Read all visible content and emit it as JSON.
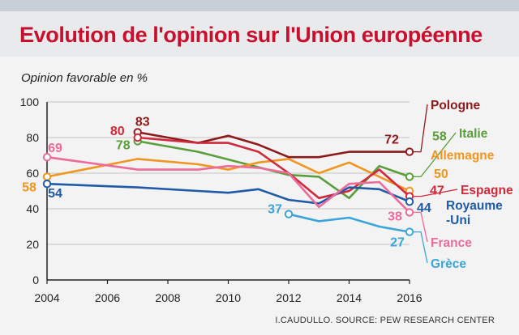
{
  "chart_data": {
    "type": "line",
    "title": "Evolution de l'opinion sur l'Union européenne",
    "ylabel": "Opinion favorable en %",
    "source": "I.CAUDULLO. SOURCE: PEW RESEARCH CENTER",
    "xlim": [
      2004,
      2016
    ],
    "ylim": [
      0,
      100
    ],
    "x_ticks": [
      "2004",
      "2006",
      "2008",
      "2010",
      "2012",
      "2014",
      "2016"
    ],
    "y_ticks": [
      "0",
      "20",
      "40",
      "60",
      "80",
      "100"
    ],
    "grid": true,
    "series": [
      {
        "name": "Pologne",
        "color": "#8e1b1b",
        "x": [
          2007,
          2008,
          2009,
          2010,
          2011,
          2012,
          2013,
          2014,
          2015,
          2016
        ],
        "y": [
          83,
          80,
          77,
          81,
          76,
          69,
          69,
          72,
          72,
          72
        ],
        "start_label": "83",
        "end_label": "72",
        "legend_label": "Pologne"
      },
      {
        "name": "Italie",
        "color": "#5a9e3a",
        "x": [
          2007,
          2009,
          2012,
          2013,
          2014,
          2015,
          2016
        ],
        "y": [
          78,
          72,
          59,
          58,
          46,
          64,
          58
        ],
        "start_label": "78",
        "end_label": "58",
        "legend_label": "Italie"
      },
      {
        "name": "Allemagne",
        "color": "#f0961e",
        "x": [
          2004,
          2007,
          2009,
          2010,
          2011,
          2012,
          2013,
          2014,
          2015,
          2016
        ],
        "y": [
          58,
          68,
          65,
          62,
          66,
          68,
          60,
          66,
          58,
          50
        ],
        "start_label": "58",
        "end_label": "50",
        "legend_label": "Allemagne"
      },
      {
        "name": "Espagne",
        "color": "#d0293b",
        "x": [
          2007,
          2009,
          2010,
          2011,
          2012,
          2013,
          2014,
          2015,
          2016
        ],
        "y": [
          80,
          77,
          77,
          72,
          60,
          46,
          50,
          62,
          47
        ],
        "start_label": "80",
        "end_label": "47",
        "legend_label": "Espagne"
      },
      {
        "name": "Royaume-Uni",
        "color": "#1f5aa6",
        "x": [
          2004,
          2007,
          2009,
          2010,
          2011,
          2012,
          2013,
          2014,
          2015,
          2016
        ],
        "y": [
          54,
          52,
          50,
          49,
          51,
          45,
          43,
          52,
          51,
          44
        ],
        "start_label": "54",
        "end_label": "44",
        "legend_label": "Royaume -Uni"
      },
      {
        "name": "France",
        "color": "#ec6b9a",
        "x": [
          2004,
          2007,
          2009,
          2010,
          2011,
          2012,
          2013,
          2014,
          2015,
          2016
        ],
        "y": [
          69,
          62,
          62,
          64,
          63,
          60,
          41,
          54,
          55,
          38
        ],
        "start_label": "69",
        "end_label": "38",
        "legend_label": "France"
      },
      {
        "name": "Grèce",
        "color": "#3aa5d8",
        "x": [
          2012,
          2013,
          2014,
          2015,
          2016
        ],
        "y": [
          37,
          33,
          35,
          30,
          27
        ],
        "start_label": "37",
        "end_label": "27",
        "legend_label": "Grèce"
      }
    ]
  }
}
